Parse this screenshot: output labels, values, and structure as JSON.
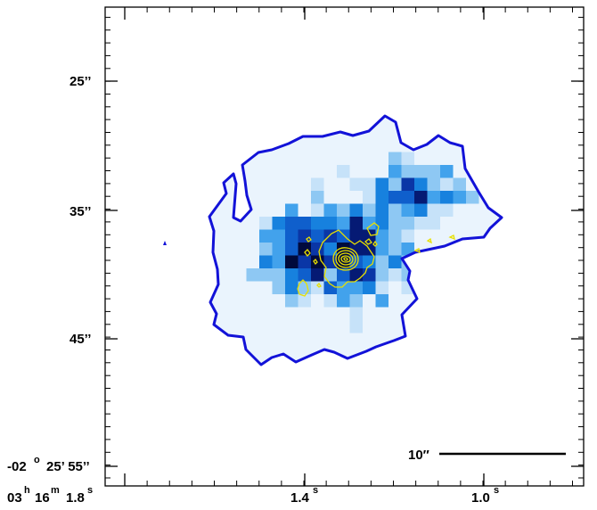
{
  "figure": {
    "y_tick_labels": [
      "25’’",
      "35’’",
      "45’’"
    ],
    "y_corner_label": {
      "deg": "-02",
      "deg_sup": "o",
      "rest": "25’ 55’’"
    },
    "x_corner_label": {
      "h": "03",
      "h_sup": "h",
      "m": "16",
      "m_sup": "m",
      "s": "1.8",
      "s_sup": "s"
    },
    "x_tick_labels": [
      {
        "main": "1.4",
        "sup": "s"
      },
      {
        "main": "1.0",
        "sup": "s"
      }
    ],
    "scale_bar_label": "10″"
  },
  "colors": {
    "map_outline": "#1212d8",
    "contours": "#e8e000",
    "frame": "#000000",
    "pixel_ramp": [
      "#eaf4fd",
      "#c6e2f9",
      "#8ec8f3",
      "#42a2ec",
      "#1781de",
      "#0f5fcc",
      "#0a36a6",
      "#051a74",
      "#000a3c"
    ]
  }
}
